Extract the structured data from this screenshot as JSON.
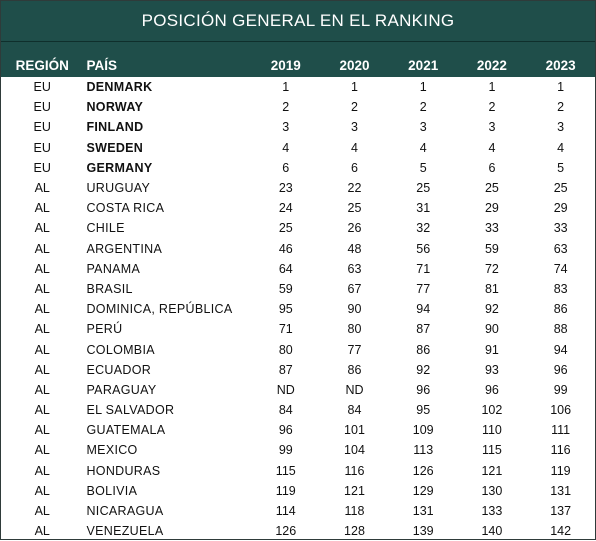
{
  "title": "POSICIÓN GENERAL EN EL RANKING",
  "headers": {
    "region": "REGIÓN",
    "country": "PAÍS",
    "years": [
      "2019",
      "2020",
      "2021",
      "2022",
      "2023"
    ]
  },
  "rows": [
    {
      "region": "EU",
      "country": "DENMARK",
      "bold": true,
      "values": [
        "1",
        "1",
        "1",
        "1",
        "1"
      ]
    },
    {
      "region": "EU",
      "country": "NORWAY",
      "bold": true,
      "values": [
        "2",
        "2",
        "2",
        "2",
        "2"
      ]
    },
    {
      "region": "EU",
      "country": "FINLAND",
      "bold": true,
      "values": [
        "3",
        "3",
        "3",
        "3",
        "3"
      ]
    },
    {
      "region": "EU",
      "country": "SWEDEN",
      "bold": true,
      "values": [
        "4",
        "4",
        "4",
        "4",
        "4"
      ]
    },
    {
      "region": "EU",
      "country": "GERMANY",
      "bold": true,
      "values": [
        "6",
        "6",
        "5",
        "6",
        "5"
      ]
    },
    {
      "region": "AL",
      "country": "URUGUAY",
      "bold": false,
      "values": [
        "23",
        "22",
        "25",
        "25",
        "25"
      ]
    },
    {
      "region": "AL",
      "country": "COSTA RICA",
      "bold": false,
      "values": [
        "24",
        "25",
        "31",
        "29",
        "29"
      ]
    },
    {
      "region": "AL",
      "country": "CHILE",
      "bold": false,
      "values": [
        "25",
        "26",
        "32",
        "33",
        "33"
      ]
    },
    {
      "region": "AL",
      "country": "ARGENTINA",
      "bold": false,
      "values": [
        "46",
        "48",
        "56",
        "59",
        "63"
      ]
    },
    {
      "region": "AL",
      "country": "PANAMA",
      "bold": false,
      "values": [
        "64",
        "63",
        "71",
        "72",
        "74"
      ]
    },
    {
      "region": "AL",
      "country": "BRASIL",
      "bold": false,
      "values": [
        "59",
        "67",
        "77",
        "81",
        "83"
      ]
    },
    {
      "region": "AL",
      "country": "DOMINICA, REPÚBLICA",
      "bold": false,
      "values": [
        "95",
        "90",
        "94",
        "92",
        "86"
      ]
    },
    {
      "region": "AL",
      "country": "PERÚ",
      "bold": false,
      "values": [
        "71",
        "80",
        "87",
        "90",
        "88"
      ]
    },
    {
      "region": "AL",
      "country": "COLOMBIA",
      "bold": false,
      "values": [
        "80",
        "77",
        "86",
        "91",
        "94"
      ]
    },
    {
      "region": "AL",
      "country": "ECUADOR",
      "bold": false,
      "values": [
        "87",
        "86",
        "92",
        "93",
        "96"
      ]
    },
    {
      "region": "AL",
      "country": "PARAGUAY",
      "bold": false,
      "values": [
        "ND",
        "ND",
        "96",
        "96",
        "99"
      ]
    },
    {
      "region": "AL",
      "country": "EL SALVADOR",
      "bold": false,
      "values": [
        "84",
        "84",
        "95",
        "102",
        "106"
      ]
    },
    {
      "region": "AL",
      "country": "GUATEMALA",
      "bold": false,
      "values": [
        "96",
        "101",
        "109",
        "110",
        "111"
      ]
    },
    {
      "region": "AL",
      "country": "MEXICO",
      "bold": false,
      "values": [
        "99",
        "104",
        "113",
        "115",
        "116"
      ]
    },
    {
      "region": "AL",
      "country": "HONDURAS",
      "bold": false,
      "values": [
        "115",
        "116",
        "126",
        "121",
        "119"
      ]
    },
    {
      "region": "AL",
      "country": "BOLIVIA",
      "bold": false,
      "values": [
        "119",
        "121",
        "129",
        "130",
        "131"
      ]
    },
    {
      "region": "AL",
      "country": "NICARAGUA",
      "bold": false,
      "values": [
        "114",
        "118",
        "131",
        "133",
        "137"
      ]
    },
    {
      "region": "AL",
      "country": "VENEZUELA",
      "bold": false,
      "values": [
        "126",
        "128",
        "139",
        "140",
        "142"
      ]
    }
  ]
}
